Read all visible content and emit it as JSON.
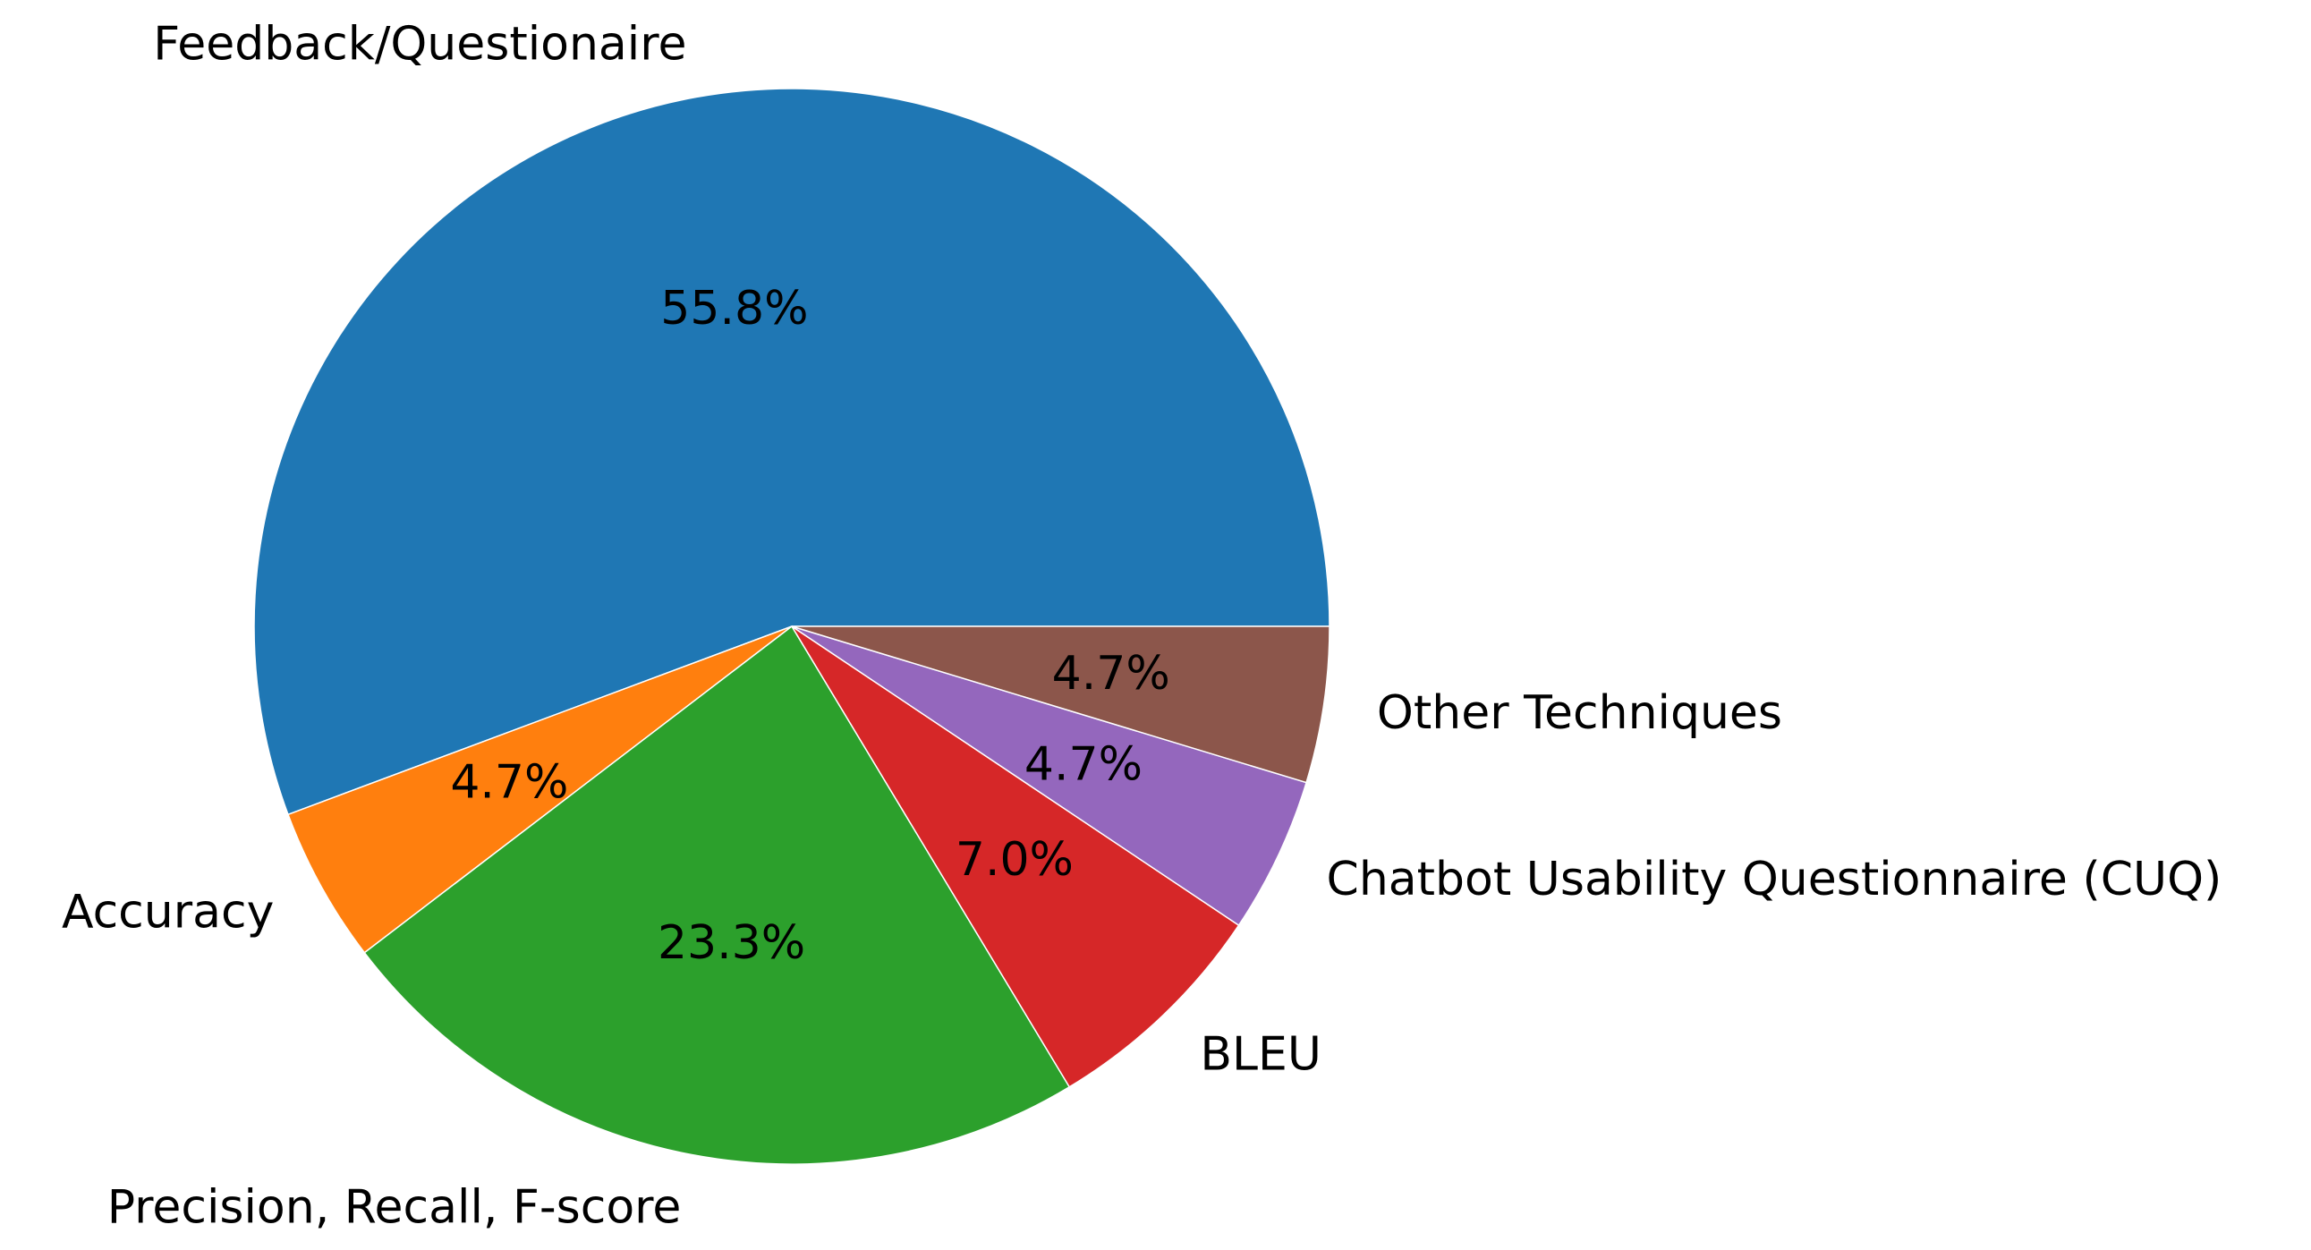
{
  "chart_data": {
    "type": "pie",
    "categories": [
      "Feedback/Questionaire",
      "Accuracy",
      "Precision, Recall, F-score",
      "BLEU",
      "Chatbot Usability Questionnaire (CUQ)",
      "Other Techniques"
    ],
    "values": [
      55.8,
      4.7,
      23.3,
      7.0,
      4.7,
      4.7
    ],
    "value_labels": [
      "55.8%",
      "4.7%",
      "23.3%",
      "7.0%",
      "4.7%",
      "4.7%"
    ],
    "colors": [
      "#1f77b4",
      "#ff7f0e",
      "#2ca02c",
      "#d62728",
      "#9467bd",
      "#8c564b"
    ]
  }
}
